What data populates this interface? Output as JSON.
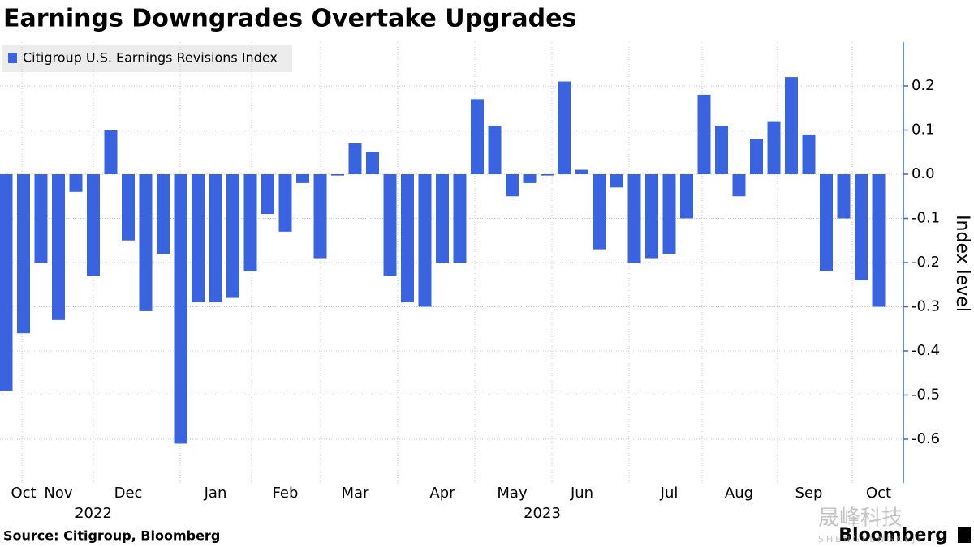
{
  "chart_data": {
    "type": "bar",
    "title": "Earnings Downgrades Overtake Upgrades",
    "series": [
      {
        "name": "Citigroup U.S. Earnings Revisions Index",
        "color": "#3a63df",
        "values": [
          -0.49,
          -0.36,
          -0.2,
          -0.33,
          -0.04,
          -0.23,
          0.1,
          -0.15,
          -0.31,
          -0.18,
          -0.61,
          -0.29,
          -0.29,
          -0.28,
          -0.22,
          -0.09,
          -0.13,
          -0.02,
          -0.19,
          -0.003,
          0.07,
          0.05,
          -0.23,
          -0.29,
          -0.3,
          -0.2,
          -0.2,
          0.17,
          0.11,
          -0.05,
          -0.02,
          -0.003,
          0.21,
          0.01,
          -0.17,
          -0.03,
          -0.2,
          -0.19,
          -0.18,
          -0.1,
          0.18,
          0.11,
          -0.05,
          0.08,
          0.12,
          0.22,
          0.09,
          -0.22,
          -0.1,
          -0.24,
          -0.3
        ]
      }
    ],
    "categories": [
      null,
      "Oct",
      null,
      "Nov",
      null,
      null,
      null,
      "Dec",
      null,
      null,
      null,
      null,
      "Jan",
      null,
      null,
      null,
      "Feb",
      null,
      null,
      null,
      "Mar",
      null,
      null,
      null,
      null,
      "Apr",
      null,
      null,
      null,
      "May",
      null,
      null,
      null,
      "Jun",
      null,
      null,
      null,
      null,
      "Jul",
      null,
      null,
      null,
      "Aug",
      null,
      null,
      null,
      "Sep",
      null,
      null,
      null,
      "Oct"
    ],
    "year_labels": [
      "2022",
      "2023"
    ],
    "y_label": "Index level",
    "ylim": [
      -0.7,
      0.3
    ],
    "yticks": [
      -0.6,
      -0.5,
      -0.4,
      -0.3,
      -0.2,
      -0.1,
      {
        "value": 0,
        "label": "0.0"
      },
      0.1,
      0.2
    ],
    "grid": true,
    "source": "Source: Citigroup, Bloomberg",
    "brand": "Bloomberg",
    "watermark": "晟峰科技",
    "watermark_sub": "SHENGFENGKEJI"
  }
}
